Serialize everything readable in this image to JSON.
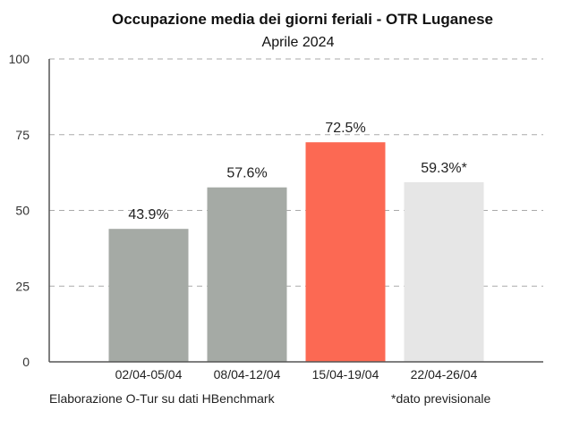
{
  "chart_data": {
    "type": "bar",
    "title": "Occupazione media dei giorni feriali - OTR Luganese",
    "subtitle": "Aprile 2024",
    "categories": [
      "02/04-05/04",
      "08/04-12/04",
      "15/04-19/04",
      "22/04-26/04"
    ],
    "values": [
      43.9,
      57.6,
      72.5,
      59.3
    ],
    "data_labels": [
      "43.9%",
      "57.6%",
      "72.5%",
      "59.3%*"
    ],
    "bar_colors": [
      "#a5aaa5",
      "#a5aaa5",
      "#fc6953",
      "#e6e6e6"
    ],
    "ylim": [
      0,
      100
    ],
    "yticks": [
      0,
      25,
      50,
      75,
      100
    ],
    "grid": true,
    "footnote_left": "Elaborazione O-Tur su dati HBenchmark",
    "footnote_right": "*dato previsionale"
  }
}
